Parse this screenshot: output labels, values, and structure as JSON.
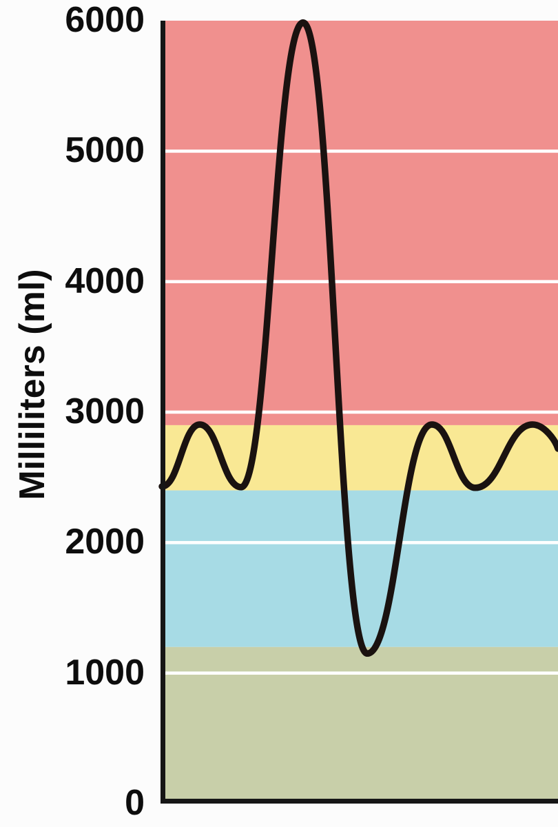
{
  "figure": {
    "ylabel": "Milliliters (ml)"
  },
  "chart_data": {
    "type": "line",
    "title": "",
    "xlabel": "",
    "ylabel": "Milliliters (ml)",
    "ylim": [
      0,
      6000
    ],
    "yticks": [
      6000,
      5000,
      4000,
      3000,
      2000,
      1000,
      0
    ],
    "gridlines_ml": [
      5000,
      4000,
      3000,
      2000,
      1000
    ],
    "grid_color": "#ffffff",
    "axis_color": "#161616",
    "legend": "none",
    "background_bands": [
      {
        "name": "red-band",
        "from_ml": 2900,
        "to_ml": 6000,
        "color": "#f0908e"
      },
      {
        "name": "yellow-band",
        "from_ml": 2400,
        "to_ml": 2900,
        "color": "#f9e894"
      },
      {
        "name": "blue-band",
        "from_ml": 1200,
        "to_ml": 2400,
        "color": "#a7dbe5"
      },
      {
        "name": "green-band",
        "from_ml": 0,
        "to_ml": 1200,
        "color": "#c8cfa9"
      }
    ],
    "series": [
      {
        "name": "breathing-volume-trace",
        "color": "#1a1210",
        "stroke_width": 9.5,
        "points_x_ml": [
          [
            2,
            2430
          ],
          [
            57,
            2905
          ],
          [
            117,
            2425
          ],
          [
            207,
            5985
          ],
          [
            300,
            1150
          ],
          [
            394,
            2905
          ],
          [
            457,
            2420
          ],
          [
            540,
            2905
          ],
          [
            577,
            2720
          ]
        ]
      }
    ]
  }
}
